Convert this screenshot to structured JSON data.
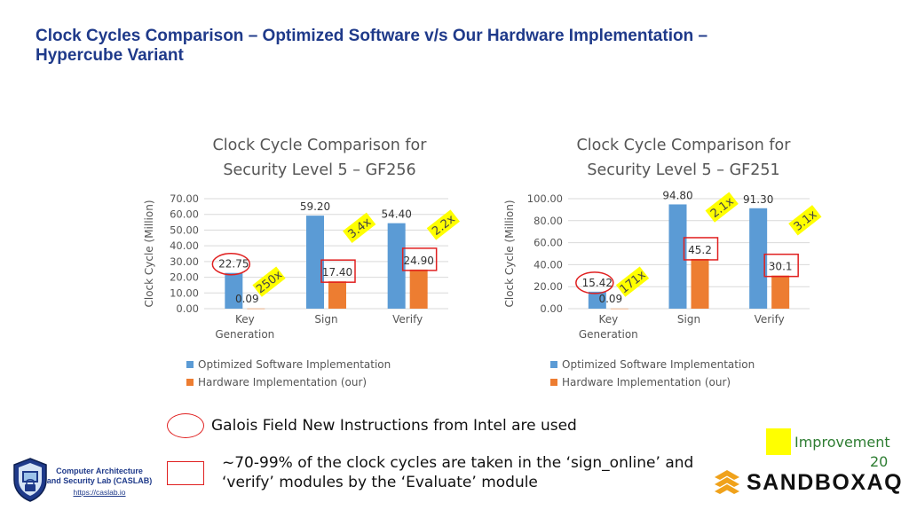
{
  "slide": {
    "title_line1": "Clock Cycles Comparison – Optimized Software v/s Our Hardware Implementation –",
    "title_line2": "Hypercube Variant",
    "page_number": "20"
  },
  "colors": {
    "software": "#5b9bd5",
    "hardware": "#ed7d31",
    "highlight": "#ffff00",
    "marker": "#e02020",
    "title": "#1f3a8a",
    "accent_green": "#2e7d32"
  },
  "chart_data": [
    {
      "type": "bar",
      "title_line1": "Clock Cycle Comparison for",
      "title_line2": "Security Level 5 – GF256",
      "ylabel": "Clock Cycle (Million)",
      "categories": [
        [
          "Key",
          "Generation"
        ],
        [
          "Sign"
        ],
        [
          "Verify"
        ]
      ],
      "ylim": [
        0,
        70
      ],
      "yticks": [
        "0.00",
        "10.00",
        "20.00",
        "30.00",
        "40.00",
        "50.00",
        "60.00",
        "70.00"
      ],
      "series": [
        {
          "name": "Optimized Software Implementation",
          "values": [
            22.75,
            59.2,
            54.4
          ],
          "labels": [
            "22.75",
            "59.20",
            "54.40"
          ]
        },
        {
          "name": "Hardware Implementation (our)",
          "values": [
            0.09,
            17.4,
            24.9
          ],
          "labels": [
            "0.09",
            "17.40",
            "24.90"
          ]
        }
      ],
      "improvements": [
        "250x",
        "3.4x",
        "2.2x"
      ],
      "legend": "bottom"
    },
    {
      "type": "bar",
      "title_line1": "Clock Cycle Comparison for",
      "title_line2": "Security Level 5 – GF251",
      "ylabel": "Clock Cycle (Million)",
      "categories": [
        [
          "Key",
          "Generation"
        ],
        [
          "Sign"
        ],
        [
          "Verify"
        ]
      ],
      "ylim": [
        0,
        100
      ],
      "yticks": [
        "0.00",
        "20.00",
        "40.00",
        "60.00",
        "80.00",
        "100.00"
      ],
      "series": [
        {
          "name": "Optimized Software Implementation",
          "values": [
            15.42,
            94.8,
            91.3
          ],
          "labels": [
            "15.42",
            "94.80",
            "91.30"
          ]
        },
        {
          "name": "Hardware Implementation (our)",
          "values": [
            0.09,
            45.2,
            30.1
          ],
          "labels": [
            "0.09",
            "45.2",
            "30.1"
          ]
        }
      ],
      "improvements": [
        "171x",
        "2.1x",
        "3.1x"
      ],
      "legend": "bottom"
    }
  ],
  "notes": {
    "oval_note": "Galois Field New Instructions from Intel are used",
    "rect_note_line1": "~70-99% of the clock cycles are taken in the ‘sign_online’ and",
    "rect_note_line2": "‘verify’ modules by the ‘Evaluate’ module",
    "improvement_legend": "Improvement"
  },
  "footer": {
    "caslab_line1": "Computer Architecture",
    "caslab_line2": "and Security Lab (CASLAB)",
    "caslab_url": "https://caslab.io",
    "sandbox_brand": "SANDBOXAQ"
  }
}
